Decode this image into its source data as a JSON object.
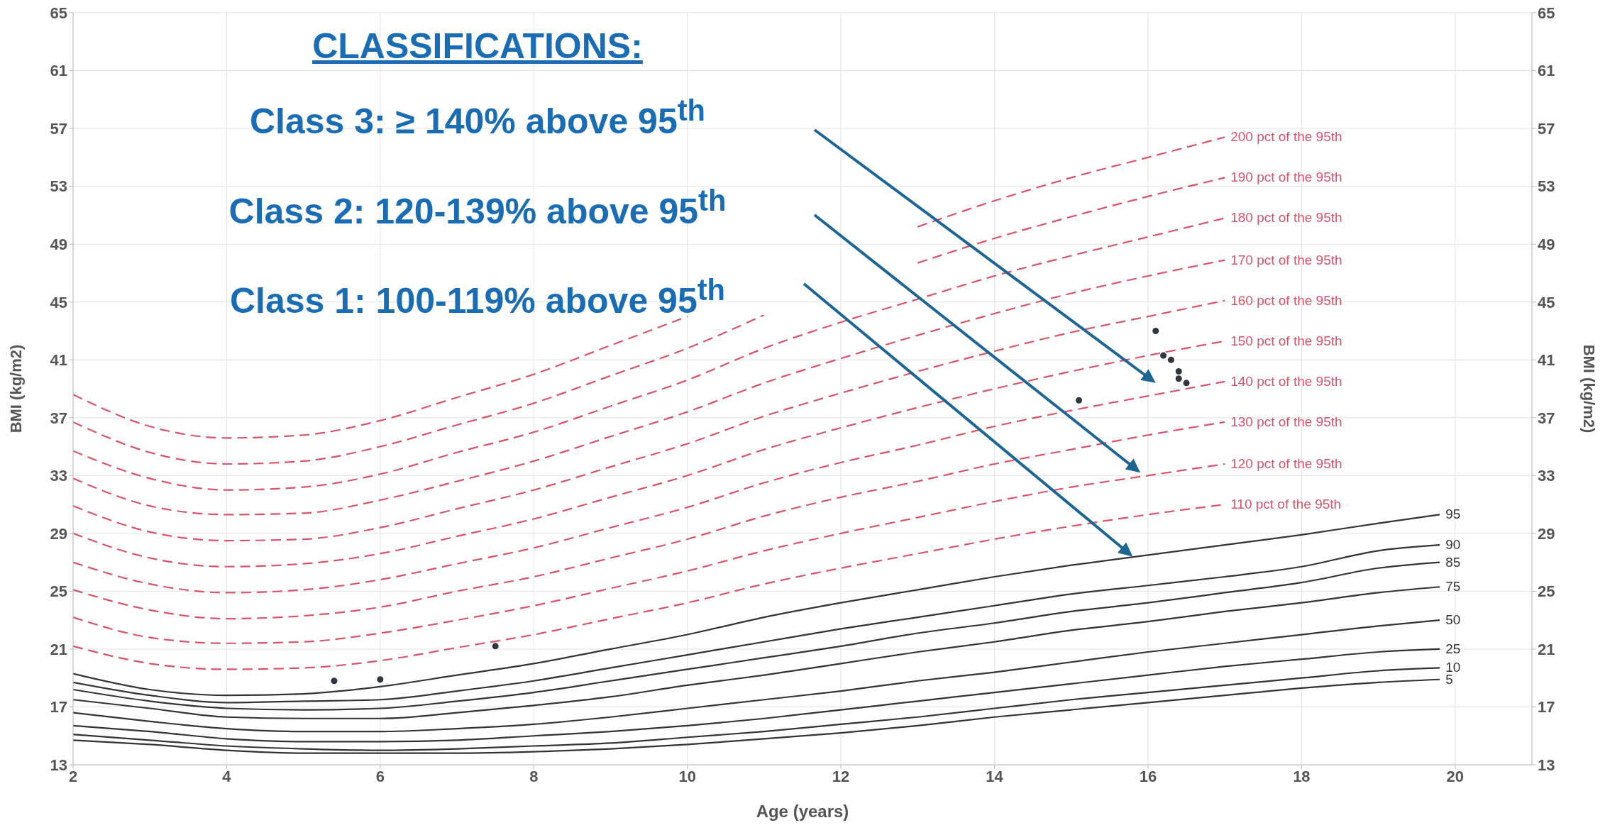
{
  "chart_data": {
    "type": "line",
    "xlabel": "Age (years)",
    "ylabel": "BMI (kg/m2)",
    "y2label": "BMI (kg/m2)",
    "x": [
      2,
      3,
      4,
      5,
      6,
      7,
      8,
      9,
      10,
      11,
      12,
      13,
      14,
      15,
      16,
      17,
      18,
      19,
      19.8
    ],
    "xlim": [
      2,
      21
    ],
    "xticks": [
      2,
      4,
      6,
      8,
      10,
      12,
      14,
      16,
      18,
      20
    ],
    "ylim": [
      13,
      65
    ],
    "yticks": [
      13,
      17,
      21,
      25,
      29,
      33,
      37,
      41,
      45,
      49,
      53,
      57,
      61,
      65
    ],
    "y2lim": [
      13,
      65
    ],
    "y2ticks": [
      13,
      17,
      21,
      25,
      29,
      33,
      37,
      41,
      45,
      49,
      53,
      57,
      61,
      65
    ],
    "grid": true,
    "legend": false,
    "annotations": [
      "CLASSIFICATIONS:",
      "Class 3: ≥ 140% above 95$^{th}$",
      "Class 2: 120-139% above 95$^{th}$",
      "Class 1: 100-119% above 95$^{th}$"
    ],
    "series": [
      {
        "name": "5",
        "color": "#333333",
        "line_style": "solid",
        "values": [
          14.7,
          14.4,
          14.0,
          13.8,
          13.8,
          13.8,
          13.9,
          14.1,
          14.4,
          14.8,
          15.2,
          15.7,
          16.3,
          16.8,
          17.3,
          17.8,
          18.3,
          18.7,
          18.9
        ]
      },
      {
        "name": "10",
        "color": "#333333",
        "line_style": "solid",
        "values": [
          15.1,
          14.7,
          14.3,
          14.1,
          14.0,
          14.1,
          14.3,
          14.5,
          14.9,
          15.3,
          15.8,
          16.3,
          16.9,
          17.5,
          18.0,
          18.5,
          19.0,
          19.5,
          19.7
        ]
      },
      {
        "name": "25",
        "color": "#333333",
        "line_style": "solid",
        "values": [
          15.7,
          15.3,
          14.8,
          14.6,
          14.6,
          14.7,
          15.0,
          15.3,
          15.7,
          16.2,
          16.8,
          17.4,
          18.0,
          18.6,
          19.2,
          19.8,
          20.3,
          20.8,
          21.0
        ]
      },
      {
        "name": "50",
        "color": "#333333",
        "line_style": "solid",
        "values": [
          16.6,
          16.0,
          15.5,
          15.3,
          15.3,
          15.5,
          15.8,
          16.3,
          16.9,
          17.5,
          18.1,
          18.8,
          19.4,
          20.1,
          20.8,
          21.4,
          22.0,
          22.6,
          23.0
        ]
      },
      {
        "name": "75",
        "color": "#333333",
        "line_style": "solid",
        "values": [
          17.5,
          16.9,
          16.3,
          16.2,
          16.2,
          16.6,
          17.1,
          17.7,
          18.5,
          19.2,
          20.0,
          20.8,
          21.5,
          22.3,
          22.9,
          23.6,
          24.2,
          24.9,
          25.3
        ]
      },
      {
        "name": "85",
        "color": "#333333",
        "line_style": "solid",
        "values": [
          18.2,
          17.4,
          16.9,
          16.8,
          16.9,
          17.4,
          18.0,
          18.8,
          19.6,
          20.4,
          21.2,
          22.1,
          22.8,
          23.6,
          24.2,
          24.9,
          25.6,
          26.6,
          27.0
        ]
      },
      {
        "name": "90",
        "color": "#333333",
        "line_style": "solid",
        "values": [
          18.7,
          17.8,
          17.3,
          17.4,
          17.5,
          18.1,
          18.8,
          19.7,
          20.6,
          21.5,
          22.4,
          23.2,
          24.0,
          24.8,
          25.4,
          26.0,
          26.7,
          27.8,
          28.2
        ]
      },
      {
        "name": "95",
        "color": "#333333",
        "line_style": "solid",
        "values": [
          19.3,
          18.2,
          17.8,
          17.9,
          18.4,
          19.2,
          20.0,
          21.0,
          22.0,
          23.2,
          24.2,
          25.1,
          26.0,
          26.8,
          27.5,
          28.2,
          28.9,
          29.7,
          30.3
        ]
      },
      {
        "name": "110 pct of the 95th",
        "color": "#d6546b",
        "line_style": "dashed",
        "values": [
          21.2,
          20.0,
          19.6,
          19.7,
          20.2,
          21.1,
          22.0,
          23.1,
          24.2,
          25.5,
          26.6,
          27.6,
          28.6,
          29.5,
          30.3,
          31.0,
          null,
          null,
          null
        ]
      },
      {
        "name": "120 pct of the 95th",
        "color": "#d6546b",
        "line_style": "dashed",
        "values": [
          23.2,
          21.8,
          21.4,
          21.5,
          22.1,
          23.0,
          24.0,
          25.2,
          26.4,
          27.8,
          29.0,
          30.1,
          31.2,
          32.2,
          33.0,
          33.8,
          null,
          null,
          null
        ]
      },
      {
        "name": "130 pct of the 95th",
        "color": "#d6546b",
        "line_style": "dashed",
        "values": [
          25.1,
          23.7,
          23.1,
          23.3,
          23.9,
          25.0,
          26.0,
          27.3,
          28.6,
          30.2,
          31.5,
          32.6,
          33.8,
          34.8,
          35.8,
          36.7,
          null,
          null,
          null
        ]
      },
      {
        "name": "140 pct of the 95th",
        "color": "#d6546b",
        "line_style": "dashed",
        "values": [
          27.0,
          25.5,
          24.9,
          25.1,
          25.8,
          26.9,
          28.0,
          29.4,
          30.8,
          32.5,
          33.9,
          35.1,
          36.4,
          37.5,
          38.5,
          39.5,
          null,
          null,
          null
        ]
      },
      {
        "name": "150 pct of the 95th",
        "color": "#d6546b",
        "line_style": "dashed",
        "values": [
          29.0,
          27.3,
          26.7,
          26.9,
          27.6,
          28.8,
          30.0,
          31.5,
          33.0,
          34.8,
          36.3,
          37.7,
          39.0,
          40.2,
          41.3,
          42.3,
          null,
          null,
          null
        ]
      },
      {
        "name": "160 pct of the 95th",
        "color": "#d6546b",
        "line_style": "dashed",
        "values": [
          30.9,
          29.1,
          28.5,
          28.6,
          29.4,
          30.7,
          32.0,
          33.6,
          35.2,
          37.1,
          38.7,
          40.2,
          41.6,
          42.9,
          44.0,
          45.1,
          null,
          null,
          null
        ]
      },
      {
        "name": "170 pct of the 95th",
        "color": "#d6546b",
        "line_style": "dashed",
        "values": [
          32.8,
          30.9,
          30.3,
          30.4,
          31.3,
          32.6,
          34.0,
          35.7,
          37.4,
          39.4,
          41.1,
          42.7,
          44.2,
          45.6,
          46.8,
          47.9,
          null,
          null,
          null
        ]
      },
      {
        "name": "180 pct of the 95th",
        "color": "#d6546b",
        "line_style": "dashed",
        "values": [
          34.7,
          32.8,
          32.0,
          32.2,
          33.1,
          34.6,
          36.0,
          37.8,
          39.6,
          41.8,
          43.6,
          45.2,
          46.8,
          48.2,
          49.5,
          50.8,
          null,
          null,
          null
        ]
      },
      {
        "name": "190 pct of the 95th",
        "color": "#d6546b",
        "line_style": "dashed",
        "values": [
          36.7,
          34.6,
          33.8,
          34.0,
          35.0,
          36.5,
          38.0,
          39.9,
          41.8,
          44.1,
          null,
          47.7,
          49.4,
          50.9,
          52.3,
          53.6,
          null,
          null,
          null
        ]
      },
      {
        "name": "200 pct of the 95th",
        "color": "#d6546b",
        "line_style": "dashed",
        "values": [
          38.6,
          36.4,
          35.6,
          35.8,
          36.8,
          38.4,
          40.0,
          42.0,
          44.0,
          null,
          null,
          50.2,
          52.0,
          53.6,
          55.0,
          56.4,
          null,
          null,
          null
        ]
      },
      {
        "type": "scatter",
        "color": "#2f3640",
        "marker": "circle",
        "x": [
          5.4,
          6.0,
          7.5,
          15.1,
          16.1,
          16.2,
          16.3,
          16.4,
          16.4,
          16.5
        ],
        "values": [
          18.8,
          18.9,
          21.2,
          38.2,
          43.0,
          41.3,
          41.0,
          39.7,
          40.2,
          39.4
        ]
      }
    ]
  }
}
